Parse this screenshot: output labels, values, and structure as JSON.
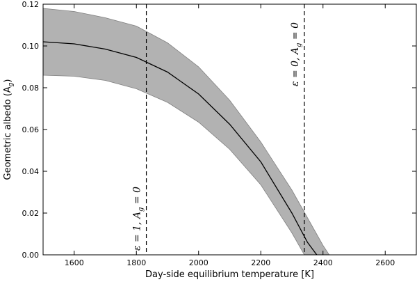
{
  "chart_data": {
    "type": "line",
    "xlabel": "Day-side equilibrium temperature [K]",
    "ylabel": "Geometric albedo (A",
    "ylabel_sub": "g",
    "ylabel_close": ")",
    "xlim": [
      1500,
      2700
    ],
    "ylim": [
      0.0,
      0.12
    ],
    "xticks": [
      1600,
      1800,
      2000,
      2200,
      2400,
      2600
    ],
    "yticks": [
      0.0,
      0.02,
      0.04,
      0.06,
      0.08,
      0.1,
      0.12
    ],
    "xtick_labels": [
      "1600",
      "1800",
      "2000",
      "2200",
      "2400",
      "2600"
    ],
    "ytick_labels": [
      "0.00",
      "0.02",
      "0.04",
      "0.06",
      "0.08",
      "0.10",
      "0.12"
    ],
    "grid": false,
    "series": [
      {
        "style": "solid",
        "color": "#000000",
        "x": [
          1500,
          1600,
          1700,
          1800,
          1900,
          2000,
          2100,
          2200,
          2300,
          2350,
          2380
        ],
        "y": [
          0.102,
          0.101,
          0.0985,
          0.0945,
          0.0875,
          0.077,
          0.0625,
          0.0445,
          0.02,
          0.006,
          0.0
        ]
      }
    ],
    "band": {
      "color": "#b2b2b2",
      "upper_x": [
        1500,
        1600,
        1700,
        1800,
        1900,
        2000,
        2100,
        2200,
        2300,
        2400,
        2420
      ],
      "upper_y": [
        0.118,
        0.1165,
        0.1135,
        0.1095,
        0.1015,
        0.09,
        0.074,
        0.054,
        0.031,
        0.0045,
        0.0
      ],
      "lower_x": [
        1500,
        1600,
        1700,
        1800,
        1900,
        2000,
        2100,
        2200,
        2300,
        2340
      ],
      "lower_y": [
        0.086,
        0.0855,
        0.0835,
        0.0795,
        0.073,
        0.0635,
        0.0505,
        0.0335,
        0.0105,
        0.0
      ]
    },
    "vlines": [
      {
        "x": 1832,
        "style": "dashed",
        "label_parts": [
          "ε = 1, A",
          "g",
          " = 0"
        ]
      },
      {
        "x": 2340,
        "style": "dashed",
        "label_parts": [
          "ε = 0, A",
          "g",
          " = 0"
        ]
      }
    ]
  }
}
